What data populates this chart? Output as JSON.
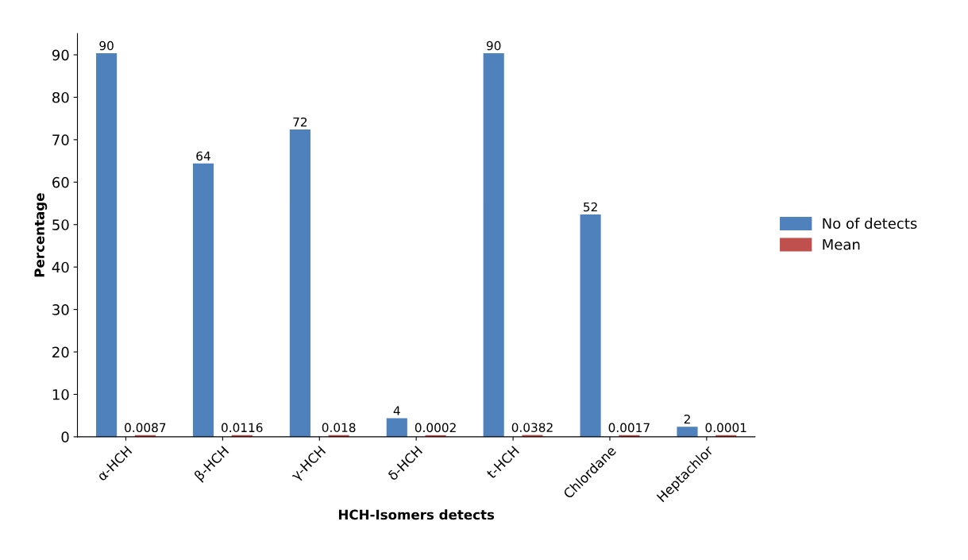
{
  "chart_data": {
    "type": "bar",
    "xlabel": "HCH-Isomers detects",
    "ylabel": "Percentage",
    "categories": [
      "α-HCH",
      "β-HCH",
      "γ-HCH",
      "δ-HCH",
      "t-HCH",
      "Chlordane",
      "Heptachlor"
    ],
    "series": [
      {
        "name": "No of detects",
        "color": "#4f81bd",
        "values": [
          90,
          64,
          72,
          4,
          90,
          52,
          2
        ]
      },
      {
        "name": "Mean",
        "color": "#c0504d",
        "values": [
          0.0087,
          0.0116,
          0.018,
          0.0002,
          0.0382,
          0.0017,
          0.0001
        ]
      }
    ],
    "ylim": [
      0,
      95
    ],
    "yticks": [
      0,
      10,
      20,
      30,
      40,
      50,
      60,
      70,
      80,
      90
    ],
    "grid": false,
    "legend": "right",
    "data_labels": true
  }
}
